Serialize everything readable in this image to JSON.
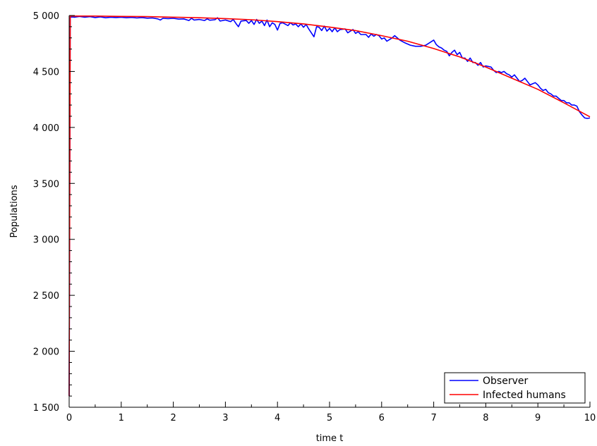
{
  "chart_data": {
    "type": "line",
    "xlabel": "time t",
    "ylabel": "Populations",
    "xlim": [
      0,
      10
    ],
    "ylim": [
      1500,
      5000
    ],
    "x_ticks": [
      0,
      1,
      2,
      3,
      4,
      5,
      6,
      7,
      8,
      9,
      10
    ],
    "x_tick_labels": [
      "0",
      "1",
      "2",
      "3",
      "4",
      "5",
      "6",
      "7",
      "8",
      "9",
      "10"
    ],
    "y_ticks": [
      1500,
      2000,
      2500,
      3000,
      3500,
      4000,
      4500,
      5000
    ],
    "y_tick_labels": [
      "1 500",
      "2 000",
      "2 500",
      "3 000",
      "3 500",
      "4 000",
      "4 500",
      "5 000"
    ],
    "grid": false,
    "legend_position": "bottom-right",
    "series": [
      {
        "name": "Observer",
        "color": "#0000ff",
        "points": [
          [
            0,
            1600
          ],
          [
            0.02,
            4990
          ],
          [
            0.1,
            4985
          ],
          [
            0.2,
            4992
          ],
          [
            0.3,
            4985
          ],
          [
            0.4,
            4990
          ],
          [
            0.5,
            4982
          ],
          [
            0.6,
            4988
          ],
          [
            0.7,
            4980
          ],
          [
            0.8,
            4985
          ],
          [
            0.9,
            4982
          ],
          [
            1.0,
            4985
          ],
          [
            1.1,
            4980
          ],
          [
            1.2,
            4983
          ],
          [
            1.3,
            4978
          ],
          [
            1.4,
            4982
          ],
          [
            1.5,
            4976
          ],
          [
            1.6,
            4978
          ],
          [
            1.7,
            4970
          ],
          [
            1.75,
            4960
          ],
          [
            1.8,
            4975
          ],
          [
            1.9,
            4972
          ],
          [
            2.0,
            4975
          ],
          [
            2.1,
            4968
          ],
          [
            2.2,
            4970
          ],
          [
            2.3,
            4955
          ],
          [
            2.35,
            4975
          ],
          [
            2.4,
            4960
          ],
          [
            2.5,
            4965
          ],
          [
            2.6,
            4955
          ],
          [
            2.65,
            4970
          ],
          [
            2.7,
            4958
          ],
          [
            2.8,
            4962
          ],
          [
            2.85,
            4980
          ],
          [
            2.9,
            4950
          ],
          [
            3.0,
            4960
          ],
          [
            3.1,
            4945
          ],
          [
            3.15,
            4965
          ],
          [
            3.2,
            4930
          ],
          [
            3.25,
            4900
          ],
          [
            3.3,
            4950
          ],
          [
            3.4,
            4955
          ],
          [
            3.45,
            4930
          ],
          [
            3.5,
            4955
          ],
          [
            3.55,
            4920
          ],
          [
            3.6,
            4965
          ],
          [
            3.65,
            4930
          ],
          [
            3.7,
            4950
          ],
          [
            3.75,
            4910
          ],
          [
            3.8,
            4960
          ],
          [
            3.85,
            4900
          ],
          [
            3.9,
            4935
          ],
          [
            3.95,
            4920
          ],
          [
            4.0,
            4870
          ],
          [
            4.05,
            4930
          ],
          [
            4.1,
            4935
          ],
          [
            4.2,
            4910
          ],
          [
            4.25,
            4935
          ],
          [
            4.3,
            4915
          ],
          [
            4.35,
            4925
          ],
          [
            4.4,
            4900
          ],
          [
            4.45,
            4925
          ],
          [
            4.5,
            4895
          ],
          [
            4.55,
            4920
          ],
          [
            4.6,
            4880
          ],
          [
            4.7,
            4810
          ],
          [
            4.75,
            4900
          ],
          [
            4.8,
            4895
          ],
          [
            4.85,
            4865
          ],
          [
            4.9,
            4905
          ],
          [
            4.95,
            4860
          ],
          [
            5.0,
            4885
          ],
          [
            5.05,
            4855
          ],
          [
            5.1,
            4890
          ],
          [
            5.15,
            4855
          ],
          [
            5.2,
            4875
          ],
          [
            5.3,
            4880
          ],
          [
            5.35,
            4845
          ],
          [
            5.4,
            4860
          ],
          [
            5.45,
            4875
          ],
          [
            5.5,
            4840
          ],
          [
            5.55,
            4855
          ],
          [
            5.6,
            4830
          ],
          [
            5.7,
            4830
          ],
          [
            5.75,
            4805
          ],
          [
            5.8,
            4835
          ],
          [
            5.85,
            4815
          ],
          [
            5.9,
            4830
          ],
          [
            5.95,
            4820
          ],
          [
            6.0,
            4790
          ],
          [
            6.05,
            4800
          ],
          [
            6.1,
            4770
          ],
          [
            6.15,
            4785
          ],
          [
            6.2,
            4800
          ],
          [
            6.25,
            4820
          ],
          [
            6.35,
            4780
          ],
          [
            6.45,
            4755
          ],
          [
            6.55,
            4735
          ],
          [
            6.65,
            4725
          ],
          [
            6.75,
            4725
          ],
          [
            6.85,
            4735
          ],
          [
            6.95,
            4765
          ],
          [
            7.0,
            4780
          ],
          [
            7.05,
            4740
          ],
          [
            7.1,
            4720
          ],
          [
            7.15,
            4710
          ],
          [
            7.2,
            4690
          ],
          [
            7.25,
            4680
          ],
          [
            7.3,
            4640
          ],
          [
            7.35,
            4670
          ],
          [
            7.4,
            4690
          ],
          [
            7.45,
            4650
          ],
          [
            7.5,
            4670
          ],
          [
            7.55,
            4620
          ],
          [
            7.6,
            4620
          ],
          [
            7.65,
            4590
          ],
          [
            7.7,
            4620
          ],
          [
            7.75,
            4580
          ],
          [
            7.8,
            4580
          ],
          [
            7.85,
            4555
          ],
          [
            7.9,
            4580
          ],
          [
            7.95,
            4540
          ],
          [
            8.0,
            4550
          ],
          [
            8.1,
            4540
          ],
          [
            8.15,
            4510
          ],
          [
            8.2,
            4490
          ],
          [
            8.25,
            4500
          ],
          [
            8.3,
            4490
          ],
          [
            8.35,
            4500
          ],
          [
            8.4,
            4480
          ],
          [
            8.45,
            4470
          ],
          [
            8.5,
            4450
          ],
          [
            8.55,
            4470
          ],
          [
            8.6,
            4440
          ],
          [
            8.65,
            4410
          ],
          [
            8.7,
            4420
          ],
          [
            8.75,
            4440
          ],
          [
            8.8,
            4410
          ],
          [
            8.85,
            4380
          ],
          [
            8.9,
            4390
          ],
          [
            8.95,
            4400
          ],
          [
            9.0,
            4380
          ],
          [
            9.05,
            4350
          ],
          [
            9.1,
            4330
          ],
          [
            9.15,
            4340
          ],
          [
            9.2,
            4310
          ],
          [
            9.25,
            4300
          ],
          [
            9.3,
            4280
          ],
          [
            9.35,
            4280
          ],
          [
            9.4,
            4260
          ],
          [
            9.45,
            4240
          ],
          [
            9.5,
            4240
          ],
          [
            9.55,
            4220
          ],
          [
            9.6,
            4220
          ],
          [
            9.65,
            4200
          ],
          [
            9.7,
            4200
          ],
          [
            9.75,
            4190
          ],
          [
            9.8,
            4140
          ],
          [
            9.85,
            4110
          ],
          [
            9.9,
            4085
          ],
          [
            9.95,
            4080
          ],
          [
            10.0,
            4085
          ]
        ]
      },
      {
        "name": "Infected humans",
        "color": "#ff0000",
        "points": [
          [
            0,
            1600
          ],
          [
            0.02,
            4995
          ],
          [
            0.5,
            4995
          ],
          [
            1.0,
            4992
          ],
          [
            1.5,
            4990
          ],
          [
            2.0,
            4985
          ],
          [
            2.5,
            4980
          ],
          [
            3.0,
            4972
          ],
          [
            3.5,
            4962
          ],
          [
            4.0,
            4945
          ],
          [
            4.5,
            4925
          ],
          [
            5.0,
            4897
          ],
          [
            5.5,
            4865
          ],
          [
            6.0,
            4820
          ],
          [
            6.5,
            4770
          ],
          [
            7.0,
            4705
          ],
          [
            7.5,
            4630
          ],
          [
            8.0,
            4540
          ],
          [
            8.5,
            4440
          ],
          [
            9.0,
            4340
          ],
          [
            9.5,
            4220
          ],
          [
            10.0,
            4095
          ]
        ]
      }
    ]
  }
}
